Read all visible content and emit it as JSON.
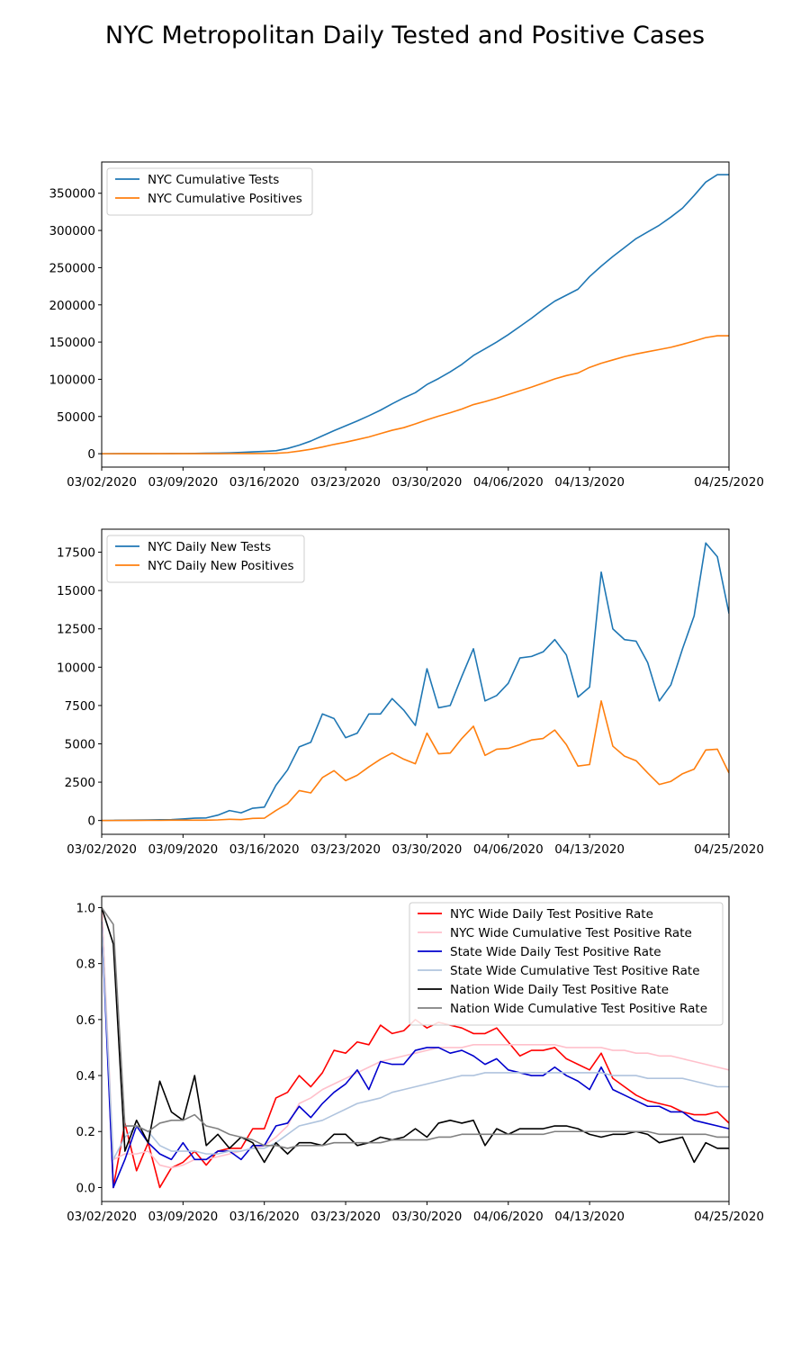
{
  "title": "NYC Metropolitan Daily Tested and Positive Cases",
  "chart_data": [
    {
      "type": "line",
      "legend_position": "upper-left",
      "x_dates": [
        "03/02",
        "03/03",
        "03/04",
        "03/05",
        "03/06",
        "03/07",
        "03/08",
        "03/09",
        "03/10",
        "03/11",
        "03/12",
        "03/13",
        "03/14",
        "03/15",
        "03/16",
        "03/17",
        "03/18",
        "03/19",
        "03/20",
        "03/21",
        "03/22",
        "03/23",
        "03/24",
        "03/25",
        "03/26",
        "03/27",
        "03/28",
        "03/29",
        "03/30",
        "03/31",
        "04/01",
        "04/02",
        "04/03",
        "04/04",
        "04/05",
        "04/06",
        "04/07",
        "04/08",
        "04/09",
        "04/10",
        "04/11",
        "04/12",
        "04/13",
        "04/14",
        "04/15",
        "04/16",
        "04/17",
        "04/18",
        "04/19",
        "04/20",
        "04/21",
        "04/22",
        "04/23",
        "04/24",
        "04/25"
      ],
      "xticks": [
        "03/02/2020",
        "03/09/2020",
        "03/16/2020",
        "03/23/2020",
        "03/30/2020",
        "04/06/2020",
        "04/13/2020",
        "04/25/2020"
      ],
      "xtick_index": [
        0,
        7,
        14,
        21,
        28,
        35,
        42,
        54
      ],
      "ylim": [
        -18000,
        392000
      ],
      "yticks": [
        "0",
        "50000",
        "100000",
        "150000",
        "200000",
        "250000",
        "300000",
        "350000"
      ],
      "series": [
        {
          "name": "NYC Cumulative Tests",
          "color": "#1f77b4",
          "values": [
            0,
            10,
            30,
            60,
            100,
            150,
            200,
            300,
            450,
            620,
            800,
            1200,
            1800,
            2500,
            3100,
            4000,
            7000,
            11500,
            17000,
            24000,
            31000,
            37500,
            44000,
            51000,
            58500,
            67000,
            75000,
            82000,
            93000,
            101000,
            110000,
            120000,
            132000,
            141000,
            150000,
            160000,
            171000,
            182000,
            194000,
            205000,
            213000,
            221000,
            238000,
            252000,
            265000,
            277000,
            289000,
            298000,
            307000,
            318000,
            330000,
            347000,
            365000,
            375000,
            375000
          ]
        },
        {
          "name": "NYC Cumulative Positives",
          "color": "#ff7f0e",
          "values": [
            0,
            2,
            5,
            10,
            20,
            30,
            40,
            50,
            70,
            90,
            110,
            150,
            200,
            250,
            300,
            500,
            1500,
            3500,
            6000,
            9000,
            12500,
            15500,
            19000,
            22500,
            27000,
            31500,
            35000,
            40000,
            45500,
            50500,
            55000,
            60000,
            66000,
            70000,
            74500,
            79500,
            84500,
            89500,
            95000,
            100500,
            105000,
            108500,
            116000,
            121500,
            126000,
            130500,
            134000,
            137000,
            140000,
            143000,
            147000,
            151500,
            156000,
            158500,
            158500
          ]
        }
      ]
    },
    {
      "type": "line",
      "legend_position": "upper-left",
      "ylim": [
        -900,
        19000
      ],
      "yticks": [
        "0",
        "2500",
        "5000",
        "7500",
        "10000",
        "12500",
        "15000",
        "17500"
      ],
      "series": [
        {
          "name": "NYC Daily New Tests",
          "color": "#1f77b4",
          "values": [
            0,
            10,
            20,
            30,
            40,
            50,
            60,
            100,
            150,
            170,
            350,
            650,
            500,
            800,
            870,
            2300,
            3300,
            4800,
            5100,
            6950,
            6650,
            5400,
            5700,
            6950,
            6950,
            7950,
            7200,
            6200,
            9900,
            7350,
            7500,
            9400,
            11200,
            7800,
            8150,
            8950,
            10600,
            10700,
            11000,
            11800,
            10800,
            8050,
            8700,
            16200,
            12500,
            11800,
            11700,
            10300,
            7800,
            8850,
            11200,
            13350,
            18100,
            17200,
            13500
          ]
        },
        {
          "name": "NYC Daily New Positives",
          "color": "#ff7f0e",
          "values": [
            0,
            2,
            5,
            5,
            10,
            10,
            20,
            20,
            20,
            20,
            40,
            80,
            60,
            140,
            150,
            650,
            1100,
            1950,
            1800,
            2800,
            3250,
            2600,
            2950,
            3500,
            4000,
            4400,
            4000,
            3700,
            5700,
            4350,
            4400,
            5350,
            6150,
            4250,
            4650,
            4700,
            4950,
            5250,
            5350,
            5900,
            4950,
            3550,
            3650,
            7800,
            4850,
            4200,
            3900,
            3100,
            2350,
            2550,
            3050,
            3350,
            4600,
            4650,
            3100
          ]
        }
      ]
    },
    {
      "type": "line",
      "legend_position": "upper-right",
      "ylim": [
        -0.05,
        1.04
      ],
      "yticks": [
        "0.0",
        "0.2",
        "0.4",
        "0.6",
        "0.8",
        "1.0"
      ],
      "series": [
        {
          "name": "NYC Wide Daily Test Positive Rate",
          "color": "#ff0000",
          "values": [
            1.0,
            0.0,
            0.23,
            0.06,
            0.16,
            0.0,
            0.07,
            0.09,
            0.13,
            0.08,
            0.13,
            0.14,
            0.14,
            0.21,
            0.21,
            0.32,
            0.34,
            0.4,
            0.36,
            0.41,
            0.49,
            0.48,
            0.52,
            0.51,
            0.58,
            0.55,
            0.56,
            0.6,
            0.57,
            0.59,
            0.58,
            0.57,
            0.55,
            0.55,
            0.57,
            0.52,
            0.47,
            0.49,
            0.49,
            0.5,
            0.46,
            0.44,
            0.42,
            0.48,
            0.39,
            0.36,
            0.33,
            0.31,
            0.3,
            0.29,
            0.27,
            0.26,
            0.26,
            0.27,
            0.23
          ]
        },
        {
          "name": "NYC Wide Cumulative Test Positive Rate",
          "color": "#ffc0cb",
          "values": [
            1.0,
            0.1,
            0.12,
            0.12,
            0.13,
            0.08,
            0.07,
            0.08,
            0.1,
            0.1,
            0.11,
            0.12,
            0.13,
            0.14,
            0.15,
            0.18,
            0.22,
            0.3,
            0.32,
            0.35,
            0.37,
            0.39,
            0.41,
            0.43,
            0.45,
            0.46,
            0.47,
            0.48,
            0.49,
            0.5,
            0.5,
            0.5,
            0.51,
            0.51,
            0.51,
            0.51,
            0.51,
            0.51,
            0.51,
            0.51,
            0.5,
            0.5,
            0.5,
            0.5,
            0.49,
            0.49,
            0.48,
            0.48,
            0.47,
            0.47,
            0.46,
            0.45,
            0.44,
            0.43,
            0.42
          ]
        },
        {
          "name": "State Wide Daily Test Positive Rate",
          "color": "#0000cd",
          "values": [
            0.95,
            0.0,
            0.1,
            0.22,
            0.16,
            0.12,
            0.1,
            0.16,
            0.1,
            0.1,
            0.13,
            0.13,
            0.1,
            0.15,
            0.15,
            0.22,
            0.23,
            0.29,
            0.25,
            0.3,
            0.34,
            0.37,
            0.42,
            0.35,
            0.45,
            0.44,
            0.44,
            0.49,
            0.5,
            0.5,
            0.48,
            0.49,
            0.47,
            0.44,
            0.46,
            0.42,
            0.41,
            0.4,
            0.4,
            0.43,
            0.4,
            0.38,
            0.35,
            0.43,
            0.35,
            0.33,
            0.31,
            0.29,
            0.29,
            0.27,
            0.27,
            0.24,
            0.23,
            0.22,
            0.21
          ]
        },
        {
          "name": "State Wide Cumulative Test Positive Rate",
          "color": "#b0c4de",
          "values": [
            0.95,
            0.1,
            0.18,
            0.22,
            0.2,
            0.15,
            0.13,
            0.13,
            0.13,
            0.12,
            0.12,
            0.13,
            0.13,
            0.14,
            0.14,
            0.16,
            0.19,
            0.22,
            0.23,
            0.24,
            0.26,
            0.28,
            0.3,
            0.31,
            0.32,
            0.34,
            0.35,
            0.36,
            0.37,
            0.38,
            0.39,
            0.4,
            0.4,
            0.41,
            0.41,
            0.41,
            0.41,
            0.41,
            0.41,
            0.41,
            0.41,
            0.41,
            0.41,
            0.41,
            0.4,
            0.4,
            0.4,
            0.39,
            0.39,
            0.39,
            0.39,
            0.38,
            0.37,
            0.36,
            0.36
          ]
        },
        {
          "name": "Nation Wide Daily Test Positive Rate",
          "color": "#000000",
          "values": [
            1.0,
            0.87,
            0.13,
            0.24,
            0.16,
            0.38,
            0.27,
            0.24,
            0.4,
            0.15,
            0.19,
            0.14,
            0.18,
            0.16,
            0.09,
            0.16,
            0.12,
            0.16,
            0.16,
            0.15,
            0.19,
            0.19,
            0.15,
            0.16,
            0.18,
            0.17,
            0.18,
            0.21,
            0.18,
            0.23,
            0.24,
            0.23,
            0.24,
            0.15,
            0.21,
            0.19,
            0.21,
            0.21,
            0.21,
            0.22,
            0.22,
            0.21,
            0.19,
            0.18,
            0.19,
            0.19,
            0.2,
            0.19,
            0.16,
            0.17,
            0.18,
            0.09,
            0.16,
            0.14,
            0.14
          ]
        },
        {
          "name": "Nation Wide Cumulative Test Positive Rate",
          "color": "#808080",
          "values": [
            1.0,
            0.94,
            0.22,
            0.22,
            0.2,
            0.23,
            0.24,
            0.24,
            0.26,
            0.22,
            0.21,
            0.19,
            0.18,
            0.17,
            0.15,
            0.15,
            0.14,
            0.15,
            0.15,
            0.15,
            0.16,
            0.16,
            0.16,
            0.16,
            0.16,
            0.17,
            0.17,
            0.17,
            0.17,
            0.18,
            0.18,
            0.19,
            0.19,
            0.19,
            0.19,
            0.19,
            0.19,
            0.19,
            0.19,
            0.2,
            0.2,
            0.2,
            0.2,
            0.2,
            0.2,
            0.2,
            0.2,
            0.2,
            0.19,
            0.19,
            0.19,
            0.19,
            0.19,
            0.18,
            0.18
          ]
        }
      ]
    }
  ]
}
